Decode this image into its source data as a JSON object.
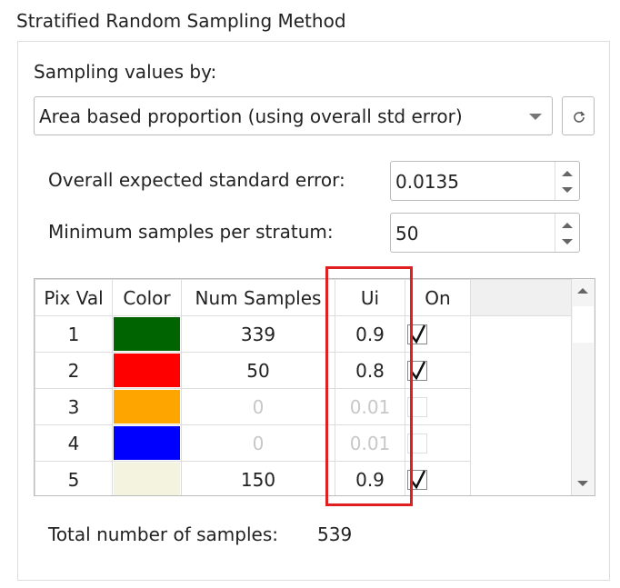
{
  "title": "Stratified Random Sampling Method",
  "sampling": {
    "label": "Sampling values by:",
    "method": "Area based proportion (using overall std error)"
  },
  "overall_error": {
    "label": "Overall expected standard error:",
    "value": "0.0135"
  },
  "min_samples": {
    "label": "Minimum samples per stratum:",
    "value": "50"
  },
  "table": {
    "headers": [
      "Pix Val",
      "Color",
      "Num Samples",
      "Ui",
      "On"
    ],
    "rows": [
      {
        "pix_val": "1",
        "color": "#006400",
        "num_samples": "339",
        "ui": "0.9",
        "checked": true,
        "enabled": true
      },
      {
        "pix_val": "2",
        "color": "#ff0000",
        "num_samples": "50",
        "ui": "0.8",
        "checked": true,
        "enabled": true
      },
      {
        "pix_val": "3",
        "color": "#ffa500",
        "num_samples": "0",
        "ui": "0.01",
        "checked": false,
        "enabled": false
      },
      {
        "pix_val": "4",
        "color": "#0000ff",
        "num_samples": "0",
        "ui": "0.01",
        "checked": false,
        "enabled": false
      },
      {
        "pix_val": "5",
        "color": "#f3f3df",
        "num_samples": "150",
        "ui": "0.9",
        "checked": true,
        "enabled": true
      }
    ]
  },
  "total": {
    "label": "Total number of samples:",
    "value": "539"
  }
}
